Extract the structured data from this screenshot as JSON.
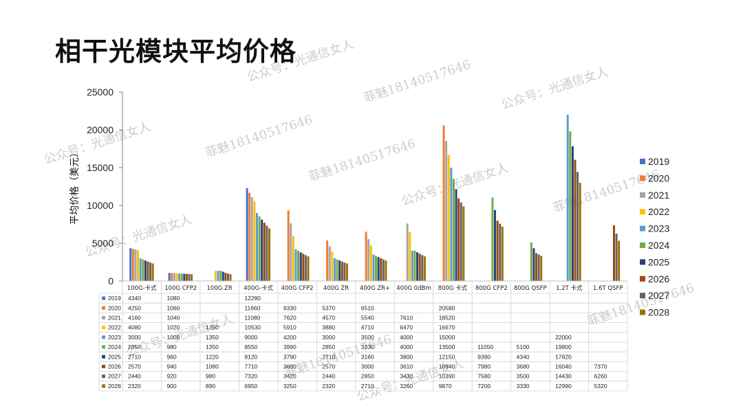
{
  "slide": {
    "title": "相干光模块平均价格"
  },
  "watermarks": [
    "公众号：光通信女人",
    "菲魅18140517646",
    "公众号：光通信女人",
    "菲魅18140517646",
    "公众号：光通信女人",
    "菲魅18140517646",
    "公众号：光通信女人",
    "菲魅18140517646",
    "公众号：光通信女人",
    "公众号：光通信女人",
    "菲魅18140517646",
    "公众号：光通信女人",
    "菲魅18140517646"
  ],
  "chart_data": {
    "type": "bar",
    "title": "",
    "xlabel": "",
    "ylabel": "平均价格（美元）",
    "ylim": [
      0,
      25000
    ],
    "yticks": [
      "0",
      "5000",
      "10000",
      "15000",
      "20000",
      "25000"
    ],
    "grid": false,
    "legend_position": "right",
    "categories": [
      "100G-卡式",
      "100G CFP2",
      "100G ZR",
      "400G-卡式",
      "400G CFP2",
      "400G ZR",
      "400G ZR+",
      "400G 0dBm",
      "800G 卡式",
      "800G CFP2",
      "800G QSFP",
      "1.2T 卡式",
      "1.6T QSFP"
    ],
    "series": [
      {
        "name": "2019",
        "color": "#4472c4",
        "values": [
          4340,
          1080,
          null,
          12280,
          null,
          null,
          null,
          null,
          null,
          null,
          null,
          null,
          null
        ]
      },
      {
        "name": "2020",
        "color": "#ed7d31",
        "values": [
          4250,
          1060,
          null,
          11660,
          9330,
          5370,
          6510,
          null,
          20580,
          null,
          null,
          null,
          null
        ]
      },
      {
        "name": "2021",
        "color": "#a5a5a5",
        "values": [
          4160,
          1040,
          null,
          11080,
          7620,
          4570,
          5540,
          7610,
          18520,
          null,
          null,
          null,
          null
        ]
      },
      {
        "name": "2022",
        "color": "#ffc000",
        "values": [
          4080,
          1020,
          1350,
          10530,
          5910,
          3880,
          4710,
          6470,
          16670,
          null,
          null,
          null,
          null
        ]
      },
      {
        "name": "2023",
        "color": "#5b9bd5",
        "values": [
          3000,
          1000,
          1350,
          9000,
          4200,
          3000,
          3500,
          4000,
          15000,
          null,
          null,
          22000,
          null
        ]
      },
      {
        "name": "2024",
        "color": "#70ad47",
        "values": [
          2850,
          980,
          1350,
          8550,
          3990,
          2850,
          3330,
          4000,
          13500,
          11050,
          5100,
          19800,
          null
        ]
      },
      {
        "name": "2025",
        "color": "#264478",
        "values": [
          2710,
          960,
          1220,
          8120,
          3790,
          2710,
          3160,
          3800,
          12150,
          9390,
          4340,
          17820,
          null
        ]
      },
      {
        "name": "2026",
        "color": "#9e480e",
        "values": [
          2570,
          940,
          1080,
          7710,
          3600,
          2570,
          3000,
          3610,
          10940,
          7980,
          3680,
          16040,
          7370
        ]
      },
      {
        "name": "2027",
        "color": "#636363",
        "values": [
          2440,
          920,
          980,
          7320,
          3420,
          2440,
          2850,
          3430,
          10390,
          7580,
          3500,
          14430,
          6260
        ]
      },
      {
        "name": "2028",
        "color": "#997300",
        "values": [
          2320,
          900,
          890,
          6950,
          3250,
          2320,
          2710,
          3260,
          9870,
          7200,
          3330,
          12990,
          5320
        ]
      }
    ]
  }
}
